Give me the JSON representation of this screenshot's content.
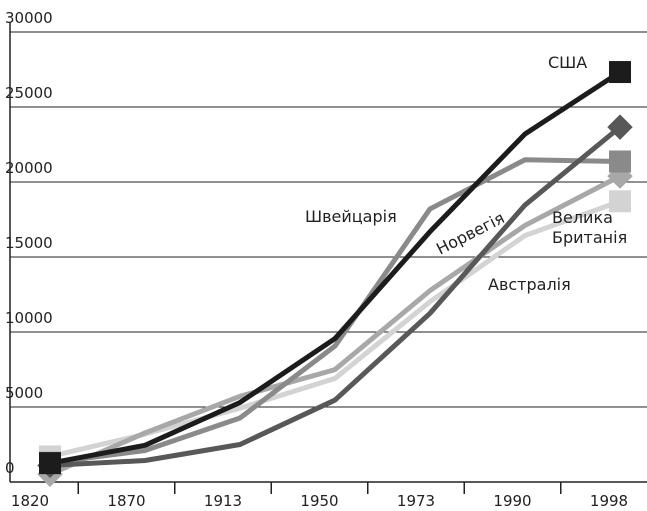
{
  "chart_data": {
    "type": "line",
    "categories": [
      "1820",
      "1870",
      "1913",
      "1950",
      "1973",
      "1990",
      "1998"
    ],
    "ylim": [
      0,
      30000
    ],
    "yticks": [
      0,
      5000,
      10000,
      15000,
      20000,
      25000,
      30000
    ],
    "grid": true,
    "series": [
      {
        "name": "Велика Британія",
        "color": "#d3d3d3",
        "marker": "square",
        "values": [
          1706,
          3190,
          4921,
          6907,
          12022,
          16430,
          18714
        ]
      },
      {
        "name": "Австралія",
        "color": "#a8a8a8",
        "marker": "diamond",
        "values": [
          518,
          3273,
          5715,
          7493,
          12759,
          17106,
          20390
        ]
      },
      {
        "name": "Швейцарія",
        "color": "#8a8a8a",
        "marker": "square",
        "values": [
          1280,
          2102,
          4266,
          9064,
          18204,
          21482,
          21367
        ]
      },
      {
        "name": "Норвегія",
        "color": "#585858",
        "marker": "diamond",
        "values": [
          1104,
          1432,
          2501,
          5463,
          11246,
          18466,
          23660
        ]
      },
      {
        "name": "США",
        "color": "#1c1c1c",
        "marker": "square",
        "values": [
          1257,
          2445,
          5301,
          9561,
          16689,
          23201,
          27331
        ]
      }
    ]
  }
}
